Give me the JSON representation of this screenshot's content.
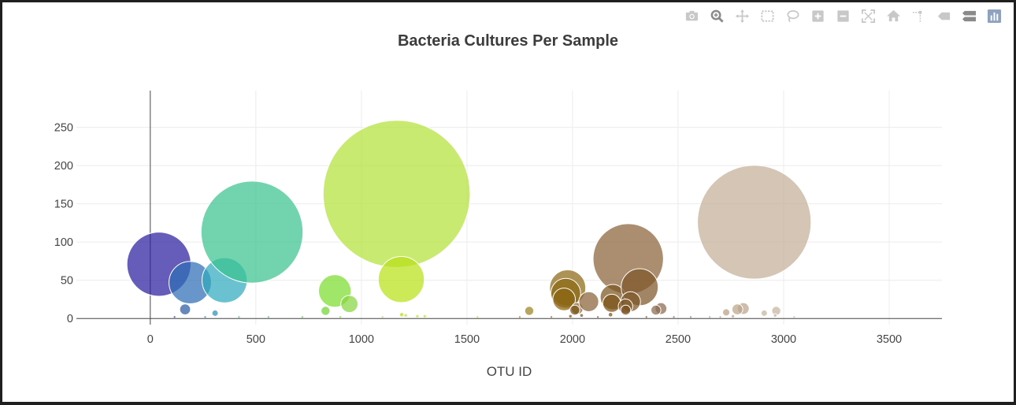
{
  "modebar": {
    "icons": [
      "camera-icon",
      "zoom-icon",
      "pan-icon",
      "box-select-icon",
      "lasso-select-icon",
      "zoom-in-icon",
      "zoom-out-icon",
      "autoscale-icon",
      "reset-axes-icon",
      "spike-lines-icon",
      "hover-closest-icon",
      "hover-compare-icon",
      "plotly-logo-icon"
    ]
  },
  "chart_data": {
    "type": "scatter",
    "subtype": "bubble",
    "title": "Bacteria Cultures Per Sample",
    "xlabel": "OTU ID",
    "ylabel": "",
    "xlim": [
      -350,
      3750
    ],
    "ylim": [
      -8,
      298
    ],
    "xticks": [
      0,
      500,
      1000,
      1500,
      2000,
      2500,
      3000,
      3500
    ],
    "yticks": [
      0,
      50,
      100,
      150,
      200,
      250
    ],
    "grid": true,
    "legend": "none",
    "colorscale": "Earth",
    "series": [
      {
        "points": [
          {
            "x": 41,
            "y": 71,
            "size": 71,
            "color": "#2a1f9e"
          },
          {
            "x": 165,
            "y": 12,
            "size": 12,
            "color": "#2c5aa0"
          },
          {
            "x": 189,
            "y": 47,
            "size": 47,
            "color": "#2f6db5"
          },
          {
            "x": 307,
            "y": 7,
            "size": 7,
            "color": "#2f8fb8"
          },
          {
            "x": 352,
            "y": 50,
            "size": 50,
            "color": "#31a9be"
          },
          {
            "x": 482,
            "y": 113,
            "size": 113,
            "color": "#3cc38f"
          },
          {
            "x": 830,
            "y": 10,
            "size": 10,
            "color": "#6fd630"
          },
          {
            "x": 874,
            "y": 36,
            "size": 36,
            "color": "#7bdc2e"
          },
          {
            "x": 943,
            "y": 19,
            "size": 19,
            "color": "#86d640"
          },
          {
            "x": 1167,
            "y": 163,
            "size": 163,
            "color": "#b4e23a"
          },
          {
            "x": 1189,
            "y": 51,
            "size": 51,
            "color": "#b8e018"
          },
          {
            "x": 1795,
            "y": 10,
            "size": 10,
            "color": "#9a8420"
          },
          {
            "x": 1977,
            "y": 40,
            "size": 40,
            "color": "#8c6a14"
          },
          {
            "x": 1968,
            "y": 33,
            "size": 33,
            "color": "#8c6a14"
          },
          {
            "x": 1960,
            "y": 25,
            "size": 25,
            "color": "#8a6410"
          },
          {
            "x": 2022,
            "y": 13,
            "size": 13,
            "color": "#85602a"
          },
          {
            "x": 2011,
            "y": 11,
            "size": 11,
            "color": "#7a5216"
          },
          {
            "x": 2077,
            "y": 22,
            "size": 22,
            "color": "#8a6338"
          },
          {
            "x": 2264,
            "y": 78,
            "size": 78,
            "color": "#8a6238"
          },
          {
            "x": 2191,
            "y": 28,
            "size": 28,
            "color": "#7c5420"
          },
          {
            "x": 2186,
            "y": 20,
            "size": 20,
            "color": "#7a5218"
          },
          {
            "x": 2318,
            "y": 41,
            "size": 41,
            "color": "#7e5628"
          },
          {
            "x": 2275,
            "y": 22,
            "size": 22,
            "color": "#7c5424"
          },
          {
            "x": 2251,
            "y": 16,
            "size": 16,
            "color": "#7c5424"
          },
          {
            "x": 2252,
            "y": 11,
            "size": 11,
            "color": "#7a5020"
          },
          {
            "x": 2419,
            "y": 13,
            "size": 13,
            "color": "#8a6a50"
          },
          {
            "x": 2395,
            "y": 11,
            "size": 11,
            "color": "#8a6a50"
          },
          {
            "x": 2861,
            "y": 126,
            "size": 126,
            "color": "#c4ae98"
          },
          {
            "x": 2809,
            "y": 13,
            "size": 13,
            "color": "#bba38a"
          },
          {
            "x": 2781,
            "y": 12,
            "size": 12,
            "color": "#bba38a"
          },
          {
            "x": 2965,
            "y": 10,
            "size": 10,
            "color": "#c8b4a0"
          },
          {
            "x": 2728,
            "y": 8,
            "size": 8,
            "color": "#b89e84"
          },
          {
            "x": 2908,
            "y": 7,
            "size": 7,
            "color": "#c8b4a0"
          },
          {
            "x": 1191,
            "y": 5,
            "size": 5,
            "color": "#b8e018"
          },
          {
            "x": 1210,
            "y": 4,
            "size": 4,
            "color": "#c0e050"
          },
          {
            "x": 2180,
            "y": 5,
            "size": 5,
            "color": "#7a5218"
          },
          {
            "x": 2043,
            "y": 4,
            "size": 4,
            "color": "#7a5216"
          },
          {
            "x": 1990,
            "y": 3,
            "size": 3,
            "color": "#7a5216"
          },
          {
            "x": 1300,
            "y": 3,
            "size": 3,
            "color": "#c2e04a"
          },
          {
            "x": 1265,
            "y": 3,
            "size": 3,
            "color": "#c2e04a"
          },
          {
            "x": 2760,
            "y": 3,
            "size": 3,
            "color": "#bba38a"
          },
          {
            "x": 2960,
            "y": 4,
            "size": 4,
            "color": "#c8b4a0"
          },
          {
            "x": 115,
            "y": 2,
            "size": 2,
            "color": "#2a3a9e"
          },
          {
            "x": 260,
            "y": 2,
            "size": 2,
            "color": "#2f80b0"
          },
          {
            "x": 420,
            "y": 2,
            "size": 2,
            "color": "#3cb8a0"
          },
          {
            "x": 560,
            "y": 2,
            "size": 2,
            "color": "#3cc38f"
          },
          {
            "x": 720,
            "y": 2,
            "size": 2,
            "color": "#60d050"
          },
          {
            "x": 900,
            "y": 2,
            "size": 2,
            "color": "#86d640"
          },
          {
            "x": 1100,
            "y": 2,
            "size": 2,
            "color": "#b0e040"
          },
          {
            "x": 1550,
            "y": 2,
            "size": 2,
            "color": "#c8d040"
          },
          {
            "x": 1750,
            "y": 2,
            "size": 2,
            "color": "#9a8420"
          },
          {
            "x": 1900,
            "y": 2,
            "size": 2,
            "color": "#8c6a14"
          },
          {
            "x": 2120,
            "y": 2,
            "size": 2,
            "color": "#7c5420"
          },
          {
            "x": 2350,
            "y": 2,
            "size": 2,
            "color": "#7c5424"
          },
          {
            "x": 2480,
            "y": 2,
            "size": 2,
            "color": "#8a6a50"
          },
          {
            "x": 2560,
            "y": 2,
            "size": 2,
            "color": "#9a8070"
          },
          {
            "x": 2650,
            "y": 2,
            "size": 2,
            "color": "#b89e84"
          },
          {
            "x": 2700,
            "y": 2,
            "size": 2,
            "color": "#b89e84"
          },
          {
            "x": 3050,
            "y": 2,
            "size": 2,
            "color": "#ccbaa6"
          }
        ]
      }
    ]
  }
}
